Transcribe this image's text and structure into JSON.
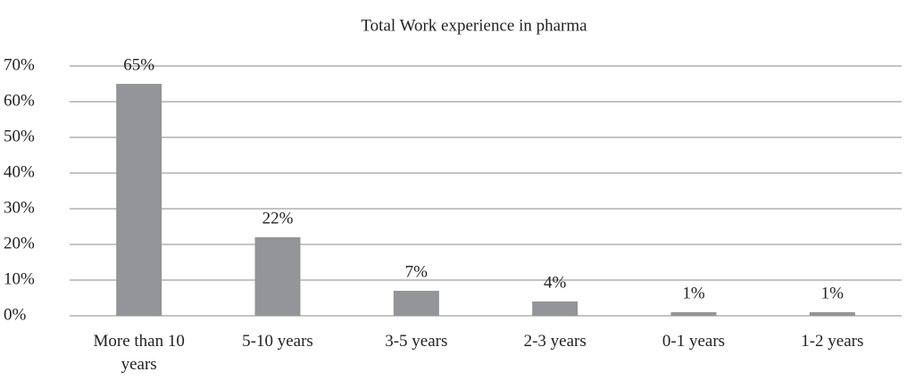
{
  "chart_data": {
    "type": "bar",
    "title": "Total Work experience in pharma",
    "categories": [
      "More than 10 years",
      "5-10 years",
      "3-5 years",
      "2-3 years",
      "0-1 years",
      "1-2 years"
    ],
    "values": [
      65,
      22,
      7,
      4,
      1,
      1
    ],
    "value_labels": [
      "65%",
      "22%",
      "7%",
      "4%",
      "1%",
      "1%"
    ],
    "color": "#939598",
    "ylim": [
      0,
      70
    ],
    "yticks": [
      {
        "value": 0,
        "label": "0%"
      },
      {
        "value": 10,
        "label": "10%"
      },
      {
        "value": 20,
        "label": "20%"
      },
      {
        "value": 30,
        "label": "30%"
      },
      {
        "value": 40,
        "label": "40%"
      },
      {
        "value": 50,
        "label": "50%"
      },
      {
        "value": 60,
        "label": "60%"
      },
      {
        "value": 70,
        "label": "70%"
      }
    ],
    "grid": true
  }
}
